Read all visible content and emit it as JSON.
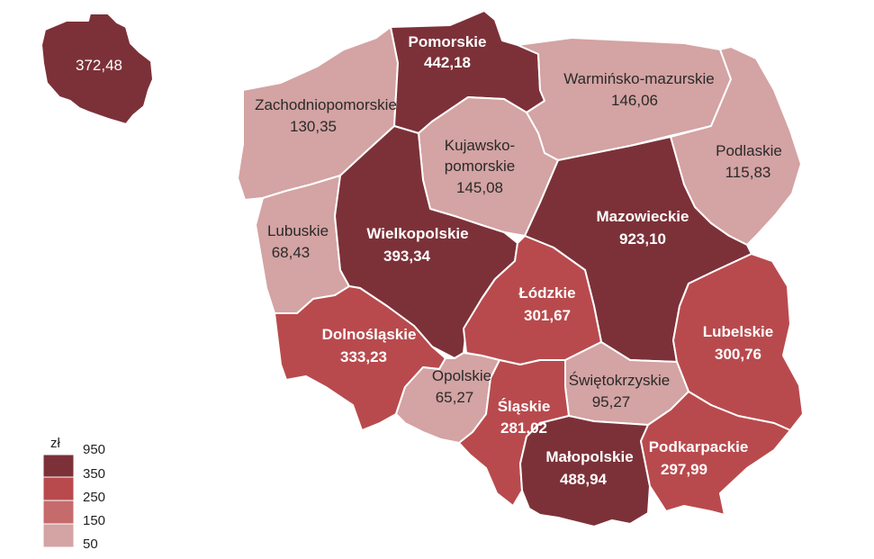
{
  "colors": {
    "c950": "#7c3138",
    "c350": "#b84a4d",
    "c250": "#c56b6c",
    "c150": "#d4a3a3",
    "c50": "#dcb9b9"
  },
  "national": {
    "value": "372,48"
  },
  "regions": {
    "pomorskie": {
      "name": "Pomorskie",
      "value": "442,18"
    },
    "zachodniopomorskie": {
      "name": "Zachodniopomorskie",
      "value": "130,35"
    },
    "warminsko": {
      "name": "Warmińsko-mazurskie",
      "value": "146,06"
    },
    "podlaskie": {
      "name": "Podlaskie",
      "value": "115,83"
    },
    "kujawsko": {
      "name_line1": "Kujawsko-",
      "name_line2": "pomorskie",
      "value": "145,08"
    },
    "lubuskie": {
      "name": "Lubuskie",
      "value": "68,43"
    },
    "wielkopolskie": {
      "name": "Wielkopolskie",
      "value": "393,34"
    },
    "mazowieckie": {
      "name": "Mazowieckie",
      "value": "923,10"
    },
    "lodzkie": {
      "name": "Łódzkie",
      "value": "301,67"
    },
    "lubelskie": {
      "name": "Lubelskie",
      "value": "300,76"
    },
    "dolnoslaskie": {
      "name": "Dolnośląskie",
      "value": "333,23"
    },
    "opolskie": {
      "name": "Opolskie",
      "value": "65,27"
    },
    "swietokrzyskie": {
      "name": "Świętokrzyskie",
      "value": "95,27"
    },
    "slaskie": {
      "name": "Śląskie",
      "value": "281,02"
    },
    "malopolskie": {
      "name": "Małopolskie",
      "value": "488,94"
    },
    "podkarpackie": {
      "name": "Podkarpackie",
      "value": "297,99"
    }
  },
  "legend": {
    "unit": "zł",
    "items": [
      "950",
      "350",
      "250",
      "150",
      "50"
    ]
  }
}
